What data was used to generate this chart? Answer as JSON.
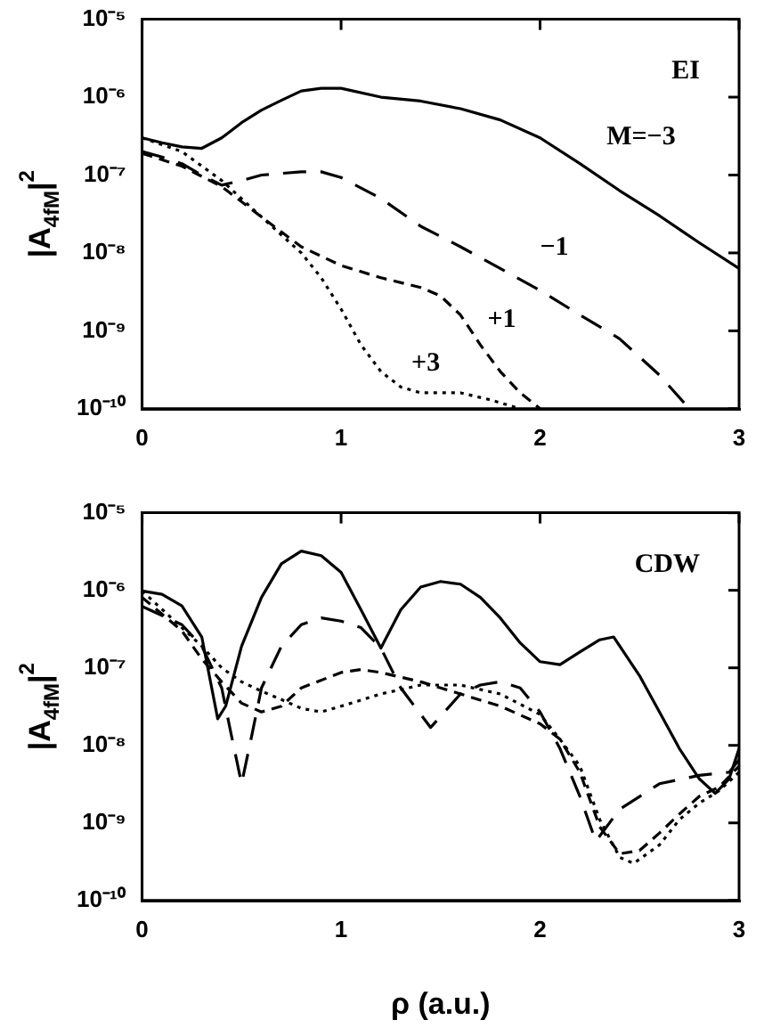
{
  "chart_data": [
    {
      "type": "line",
      "ylabel": "|A$_{4fM}$|$^{2}$",
      "log": "y",
      "grid": false,
      "legend": false,
      "marker": "none",
      "xlim": [
        0,
        3
      ],
      "xticks": [
        0,
        1,
        2,
        3
      ],
      "ylim": [
        1e-10,
        1e-05
      ],
      "yticks": [
        {
          "value": 1e-10,
          "label": "10⁻¹⁰"
        },
        {
          "value": 1e-09,
          "label": "10⁻⁹"
        },
        {
          "value": 1e-08,
          "label": "10⁻⁸"
        },
        {
          "value": 1e-07,
          "label": "10⁻⁷"
        },
        {
          "value": 1e-06,
          "label": "10⁻⁶"
        },
        {
          "value": 1e-05,
          "label": "10⁻⁵"
        }
      ],
      "annotations": [
        "EI"
      ],
      "series": [
        {
          "name": "M=−3",
          "color": "#000000",
          "line_style": "solid",
          "x": [
            0,
            0.1,
            0.2,
            0.3,
            0.4,
            0.5,
            0.6,
            0.7,
            0.8,
            0.9,
            1.0,
            1.2,
            1.4,
            1.6,
            1.8,
            2.0,
            2.2,
            2.4,
            2.6,
            2.8,
            3.0
          ],
          "values": [
            3e-07,
            2.6e-07,
            2.3e-07,
            2.2e-07,
            3e-07,
            4.7e-07,
            6.8e-07,
            9.1e-07,
            1.2e-06,
            1.3e-06,
            1.3e-06,
            1e-06,
            8.9e-07,
            7.1e-07,
            5.1e-07,
            3e-07,
            1.4e-07,
            6.3e-08,
            3e-08,
            1.35e-08,
            6.3e-09
          ]
        },
        {
          "name": "−1",
          "color": "#000000",
          "line_style": "longdash",
          "x": [
            0,
            0.1,
            0.2,
            0.3,
            0.4,
            0.5,
            0.6,
            0.8,
            0.9,
            1.0,
            1.2,
            1.4,
            1.6,
            1.8,
            2.0,
            2.2,
            2.4,
            2.6,
            2.75
          ],
          "values": [
            2e-07,
            1.7e-07,
            1.4e-07,
            1e-07,
            7.4e-08,
            8.5e-08,
            1e-07,
            1.1e-07,
            1.1e-07,
            9.3e-08,
            5e-08,
            2.2e-08,
            1.2e-08,
            6.3e-09,
            3.3e-09,
            1.6e-09,
            7.9e-10,
            2.7e-10,
            1e-10
          ]
        },
        {
          "name": "+1",
          "color": "#000000",
          "line_style": "dashed",
          "x": [
            0,
            0.2,
            0.4,
            0.6,
            0.8,
            1.0,
            1.2,
            1.4,
            1.5,
            1.6,
            1.7,
            1.8,
            1.9,
            2.0
          ],
          "values": [
            1.9e-07,
            1.3e-07,
            7.1e-08,
            2.9e-08,
            1.2e-08,
            6.9e-09,
            4.8e-09,
            3.6e-09,
            2.8e-09,
            1.6e-09,
            6.6e-10,
            3e-10,
            1.6e-10,
            1e-10
          ]
        },
        {
          "name": "+3",
          "color": "#000000",
          "line_style": "dotted",
          "x": [
            0,
            0.2,
            0.4,
            0.6,
            0.8,
            0.9,
            1.0,
            1.1,
            1.2,
            1.3,
            1.4,
            1.6,
            1.75,
            1.9
          ],
          "values": [
            3e-07,
            2e-07,
            8.5e-08,
            2.9e-08,
            1e-08,
            4.8e-09,
            1.9e-09,
            6.6e-10,
            3e-10,
            1.9e-10,
            1.6e-10,
            1.6e-10,
            1.3e-10,
            1e-10
          ]
        }
      ]
    },
    {
      "type": "line",
      "xlabel": "ρ (a.u.)",
      "ylabel": "|A$_{4fM}$|$^{2}$",
      "log": "y",
      "grid": false,
      "legend": false,
      "marker": "none",
      "xlim": [
        0,
        3
      ],
      "xticks": [
        0,
        1,
        2,
        3
      ],
      "ylim": [
        1e-10,
        1e-05
      ],
      "yticks": [
        {
          "value": 1e-10,
          "label": "10⁻¹⁰"
        },
        {
          "value": 1e-09,
          "label": "10⁻⁹"
        },
        {
          "value": 1e-08,
          "label": "10⁻⁸"
        },
        {
          "value": 1e-07,
          "label": "10⁻⁷"
        },
        {
          "value": 1e-06,
          "label": "10⁻⁶"
        },
        {
          "value": 1e-05,
          "label": "10⁻⁵"
        }
      ],
      "annotations": [
        "CDW"
      ],
      "series": [
        {
          "color": "#000000",
          "line_style": "solid",
          "x": [
            0,
            0.1,
            0.2,
            0.3,
            0.38,
            0.42,
            0.5,
            0.6,
            0.7,
            0.8,
            0.9,
            1.0,
            1.1,
            1.2,
            1.3,
            1.4,
            1.5,
            1.6,
            1.7,
            1.8,
            1.9,
            2.0,
            2.1,
            2.2,
            2.3,
            2.37,
            2.5,
            2.6,
            2.7,
            2.8,
            2.88,
            2.95,
            3.0
          ],
          "values": [
            9.8e-07,
            8.9e-07,
            6.3e-07,
            2.5e-07,
            2.2e-08,
            3.2e-08,
            1.9e-07,
            8.1e-07,
            2.2e-06,
            3.2e-06,
            2.8e-06,
            1.7e-06,
            5.6e-07,
            1.8e-07,
            5.6e-07,
            1.1e-06,
            1.3e-06,
            1.2e-06,
            8.1e-07,
            4.4e-07,
            2.1e-07,
            1.2e-07,
            1.1e-07,
            1.6e-07,
            2.3e-07,
            2.5e-07,
            7.9e-08,
            2.7e-08,
            9.1e-09,
            3.7e-09,
            2.4e-09,
            3.7e-09,
            9.1e-09
          ]
        },
        {
          "color": "#000000",
          "line_style": "longdash",
          "x": [
            0,
            0.2,
            0.3,
            0.4,
            0.45,
            0.5,
            0.55,
            0.6,
            0.7,
            0.8,
            0.9,
            1.0,
            1.1,
            1.2,
            1.3,
            1.45,
            1.6,
            1.7,
            1.8,
            1.9,
            2.0,
            2.1,
            2.2,
            2.28,
            2.4,
            2.6,
            2.8,
            2.95,
            3.0
          ],
          "values": [
            6.2e-07,
            3.6e-07,
            1.9e-07,
            5.5e-08,
            1.3e-08,
            3.2e-09,
            1.3e-08,
            5.5e-08,
            1.9e-07,
            3.6e-07,
            4.4e-07,
            4e-07,
            3.3e-07,
            1.8e-07,
            5.5e-08,
            1.7e-08,
            4.6e-08,
            6e-08,
            6.6e-08,
            5.5e-08,
            2.7e-08,
            9.1e-09,
            2.2e-09,
            5.8e-10,
            1.5e-09,
            3.2e-09,
            4.1e-09,
            4.5e-09,
            6.5e-09
          ]
        },
        {
          "color": "#000000",
          "line_style": "dashed",
          "x": [
            0,
            0.2,
            0.3,
            0.4,
            0.5,
            0.6,
            0.7,
            0.8,
            1.0,
            1.1,
            1.2,
            1.4,
            1.6,
            1.8,
            2.0,
            2.1,
            2.2,
            2.3,
            2.4,
            2.5,
            2.6,
            2.7,
            2.8,
            2.9,
            3.0
          ],
          "values": [
            8.1e-07,
            3e-07,
            1.3e-07,
            6.6e-08,
            3.5e-08,
            2.7e-08,
            3.2e-08,
            5.5e-08,
            8.7e-08,
            9.5e-08,
            8.7e-08,
            6.6e-08,
            4.6e-08,
            3.2e-08,
            1.9e-08,
            1.2e-08,
            4.5e-09,
            8.9e-10,
            4e-10,
            4.4e-10,
            7.4e-10,
            1.3e-09,
            2.2e-09,
            2.9e-09,
            5.4e-09
          ]
        },
        {
          "color": "#000000",
          "line_style": "dotted",
          "x": [
            0,
            0.2,
            0.3,
            0.4,
            0.5,
            0.6,
            0.7,
            0.8,
            0.9,
            1.0,
            1.2,
            1.4,
            1.6,
            1.8,
            2.0,
            2.1,
            2.2,
            2.3,
            2.4,
            2.47,
            2.6,
            2.7,
            2.8,
            2.9,
            3.0
          ],
          "values": [
            9.8e-07,
            3.3e-07,
            1.9e-07,
            1e-07,
            6.6e-08,
            5e-08,
            3.9e-08,
            3e-08,
            2.7e-08,
            3.2e-08,
            4.6e-08,
            6e-08,
            6e-08,
            4.6e-08,
            2.5e-08,
            1.2e-08,
            5.4e-09,
            1.1e-09,
            3.6e-10,
            3e-10,
            5.2e-10,
            1.1e-09,
            1.8e-09,
            2.6e-09,
            4.5e-09
          ]
        }
      ]
    }
  ]
}
